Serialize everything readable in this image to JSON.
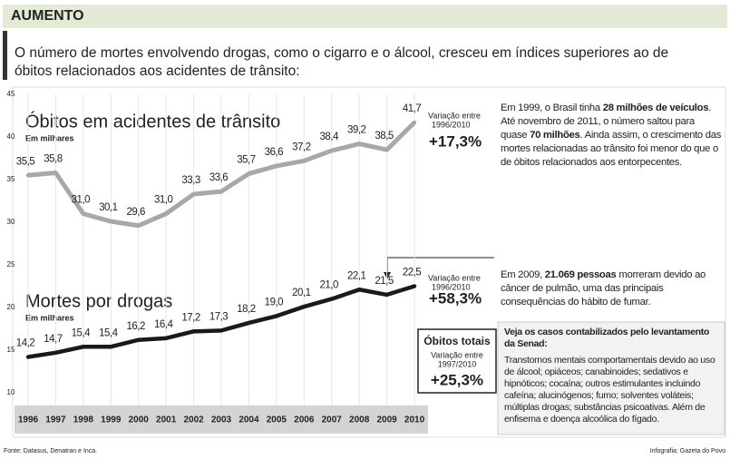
{
  "header": {
    "title": "AUMENTO",
    "subtitle": [
      "O número de mortes envolvendo drogas, como o cigarro e o álcool, cresceu em índices superiores ao de",
      "óbitos relacionados aos acidentes de trânsito:"
    ]
  },
  "chart_data": {
    "type": "line",
    "categories": [
      "1996",
      "1997",
      "1998",
      "1999",
      "2000",
      "2001",
      "2002",
      "2003",
      "2004",
      "2005",
      "2006",
      "2007",
      "2008",
      "2009",
      "2010"
    ],
    "ylim": [
      10,
      45
    ],
    "yticks": [
      10,
      15,
      20,
      25,
      30,
      35,
      40,
      45
    ],
    "x_grid": true,
    "series": [
      {
        "name": "Óbitos em acidentes de trânsito",
        "unit": "Em milhares",
        "color": "#a8a8a8",
        "values": [
          35.5,
          35.8,
          31.0,
          30.1,
          29.6,
          31.0,
          33.3,
          33.6,
          35.7,
          36.6,
          37.2,
          38.4,
          39.2,
          38.5,
          41.7
        ],
        "value_labels": [
          "35,5",
          "35,8",
          "31,0",
          "30,1",
          "29,6",
          "31,0",
          "33,3",
          "33,6",
          "35,7",
          "36,6",
          "37,2",
          "38,4",
          "39,2",
          "38,5",
          "41,7"
        ],
        "change_note": [
          "Variação entre",
          "1996/2010"
        ],
        "change": "+17,3%"
      },
      {
        "name": "Mortes por drogas",
        "unit": "Em milhares",
        "color": "#1a1a1a",
        "values": [
          14.2,
          14.7,
          15.4,
          15.4,
          16.2,
          16.4,
          17.2,
          17.3,
          18.2,
          19.0,
          20.1,
          21.0,
          22.1,
          21.5,
          22.5
        ],
        "value_labels": [
          "14,2",
          "14,7",
          "15,4",
          "15,4",
          "16,2",
          "16,4",
          "17,2",
          "17,3",
          "18,2",
          "19,0",
          "20,1",
          "21,0",
          "22,1",
          "21,5",
          "22,5"
        ],
        "change_note": [
          "Variação entre",
          "1996/2010"
        ],
        "change": "+58,3%"
      }
    ],
    "total_box": {
      "title": "Óbitos totais",
      "note": [
        "Variação entre",
        "1997/2010"
      ],
      "change": "+25,3%"
    }
  },
  "text_blocks": [
    {
      "runs": [
        {
          "text": "Em 1999, o Brasil tinha ",
          "bold": false
        },
        {
          "text": "28 milhões de veículos",
          "bold": true
        },
        {
          "text": ". Até novembro de 2011, o número saltou para quase ",
          "bold": false
        },
        {
          "text": "70 milhões",
          "bold": true
        },
        {
          "text": ". Ainda assim, o crescimento das mortes relacionadas ao trânsito foi menor do que o de óbitos relacionados aos entorpecentes.",
          "bold": false
        }
      ]
    },
    {
      "runs": [
        {
          "text": "Em 2009, ",
          "bold": false
        },
        {
          "text": "21.069 pessoas",
          "bold": true
        },
        {
          "text": " morreram devido ao câncer de pulmão, uma das principais consequências do hábito de fumar.",
          "bold": false
        }
      ]
    }
  ],
  "senad_box": {
    "title": "Veja os casos contabilizados pelo levantamento da Senad:",
    "body": "Transtornos mentais comportamentais devido ao uso de álcool; opiáceos; canabinoides; sedativos e hipnóticos; cocaína; outros estimulantes incluindo cafeína; alucinógenos; fumo; solventes voláteis; múltiplas drogas; substâncias psicoativas. Além de enfisema e doença alcoólica do fígado."
  },
  "footer": {
    "source": "Fonte: Datasus, Denatran e Inca.",
    "credit": "Infografia: Gazeta do Povo"
  }
}
